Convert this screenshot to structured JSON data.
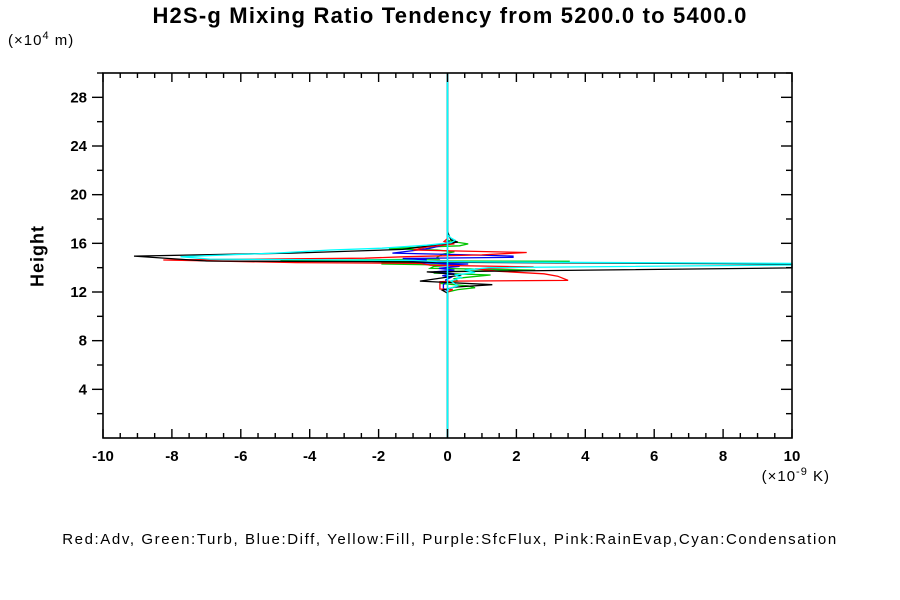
{
  "title": "H2S-g Mixing Ratio Tendency from 5200.0 to 5400.0",
  "legend_text": "Red:Adv, Green:Turb, Blue:Diff, Yellow:Fill, Purple:SfcFlux, Pink:RainEvap,Cyan:Condensation",
  "colors": {
    "background": "#ffffff",
    "frame": "#000000",
    "zero_line": "#00ffff",
    "red": "#ff0000",
    "green": "#00c400",
    "blue": "#0000ee",
    "yellow": "#ffff00",
    "purple": "#a020f0",
    "pink": "#ff69b4",
    "cyan": "#00ffff",
    "black": "#000000"
  },
  "chart_data": {
    "type": "line",
    "title": "H2S-g Mixing Ratio Tendency from 5200.0 to 5400.0",
    "orientation": "profile (x = tendency value, y = height)",
    "grid": false,
    "x_axis": {
      "range": [
        -10,
        10
      ],
      "major_tick_step": 2,
      "minor_tick_step": 0.5,
      "tick_labels": [
        "-10",
        "-8",
        "-6",
        "-4",
        "-2",
        "0",
        "2",
        "4",
        "6",
        "8",
        "10"
      ],
      "unit": {
        "prefix": "(×10",
        "exponent": "-9",
        "suffix": " K)"
      }
    },
    "y_axis": {
      "range": [
        0,
        30
      ],
      "major_tick_step": 4,
      "minor_tick_step": 2,
      "tick_labels": [
        "4",
        "8",
        "12",
        "16",
        "20",
        "24",
        "28"
      ],
      "label": "Height",
      "unit": {
        "prefix": "(×10",
        "exponent": "4",
        "suffix": " m)"
      }
    },
    "zero_line": {
      "x": 0,
      "color_key": "zero_line"
    },
    "point_format": "[height(x10^4 m), value(x10^-9 K)]",
    "series": [
      {
        "name": "Fill",
        "color_key": "yellow",
        "points": [
          [
            30,
            0
          ],
          [
            0,
            0
          ]
        ]
      },
      {
        "name": "SfcFlux",
        "color_key": "purple",
        "points": [
          [
            30,
            0
          ],
          [
            0,
            0
          ]
        ]
      },
      {
        "name": "RainEvap",
        "color_key": "pink",
        "points": [
          [
            30,
            0
          ],
          [
            0,
            0
          ]
        ]
      },
      {
        "name": "Turb",
        "color_key": "green",
        "points": [
          [
            30,
            0
          ],
          [
            16.25,
            0
          ],
          [
            16.1,
            0.25
          ],
          [
            15.95,
            0.6
          ],
          [
            15.8,
            0.35
          ],
          [
            15.65,
            -1.1
          ],
          [
            15.55,
            -1.7
          ],
          [
            15.45,
            -0.3
          ],
          [
            15.3,
            0.2
          ],
          [
            15.1,
            -0.15
          ],
          [
            14.85,
            -0.3
          ],
          [
            14.7,
            -0.25
          ],
          [
            14.58,
            -4.85
          ],
          [
            14.52,
            3.55
          ],
          [
            14.42,
            -1.9
          ],
          [
            14.3,
            -1.9
          ],
          [
            14.2,
            0.3
          ],
          [
            14.1,
            -0.4
          ],
          [
            13.95,
            -0.5
          ],
          [
            13.8,
            2.55
          ],
          [
            13.7,
            0.2
          ],
          [
            13.55,
            -0.4
          ],
          [
            13.4,
            1.25
          ],
          [
            13.25,
            0.7
          ],
          [
            13.1,
            0.2
          ],
          [
            12.9,
            0.3
          ],
          [
            12.7,
            -0.2
          ],
          [
            12.5,
            0.6
          ],
          [
            12.35,
            0.8
          ],
          [
            12.2,
            0.3
          ],
          [
            12.0,
            0
          ],
          [
            0,
            0
          ]
        ]
      },
      {
        "name": "Diff",
        "color_key": "blue",
        "points": [
          [
            30,
            0
          ],
          [
            16.2,
            0
          ],
          [
            16.0,
            0.1
          ],
          [
            15.8,
            -0.2
          ],
          [
            15.6,
            -0.5
          ],
          [
            15.4,
            -1.0
          ],
          [
            15.2,
            -1.6
          ],
          [
            15.05,
            0.7
          ],
          [
            14.95,
            1.9
          ],
          [
            14.85,
            1.9
          ],
          [
            14.75,
            -1.3
          ],
          [
            14.65,
            -0.6
          ],
          [
            14.55,
            -1.1
          ],
          [
            14.48,
            0.5
          ],
          [
            14.4,
            -0.9
          ],
          [
            14.3,
            0.6
          ],
          [
            14.2,
            -0.3
          ],
          [
            14.1,
            0.35
          ],
          [
            13.95,
            -0.25
          ],
          [
            13.8,
            0.2
          ],
          [
            13.65,
            -0.4
          ],
          [
            13.5,
            0.2
          ],
          [
            13.35,
            -0.15
          ],
          [
            13.2,
            0.1
          ],
          [
            13.0,
            -0.05
          ],
          [
            12.8,
            -0.05
          ],
          [
            12.6,
            -0.12
          ],
          [
            12.3,
            -0.12
          ],
          [
            12.1,
            0
          ],
          [
            0,
            0
          ]
        ]
      },
      {
        "name": "Adv",
        "color_key": "red",
        "points": [
          [
            30,
            0
          ],
          [
            16.4,
            0
          ],
          [
            16.15,
            -0.1
          ],
          [
            15.95,
            0.2
          ],
          [
            15.7,
            -0.6
          ],
          [
            15.45,
            -1.0
          ],
          [
            15.25,
            2.3
          ],
          [
            15.05,
            1.0
          ],
          [
            14.9,
            -1.2
          ],
          [
            14.78,
            -2.4
          ],
          [
            14.63,
            -8.25
          ],
          [
            14.42,
            -4.4
          ],
          [
            14.35,
            -0.8
          ],
          [
            14.2,
            -0.5
          ],
          [
            14.06,
            2.5
          ],
          [
            13.9,
            0.8
          ],
          [
            13.7,
            1.5
          ],
          [
            13.5,
            2.8
          ],
          [
            13.3,
            3.2
          ],
          [
            12.95,
            3.5
          ],
          [
            12.9,
            0.15
          ],
          [
            12.85,
            -0.22
          ],
          [
            12.25,
            -0.22
          ],
          [
            12.2,
            0.15
          ],
          [
            12.0,
            0
          ],
          [
            0,
            0
          ]
        ]
      },
      {
        "name": "black",
        "color_key": "black",
        "points": [
          [
            30,
            0
          ],
          [
            17.0,
            0
          ],
          [
            16.6,
            0.05
          ],
          [
            16.3,
            0.1
          ],
          [
            16.1,
            0.3
          ],
          [
            15.9,
            -0.3
          ],
          [
            15.5,
            -1.3
          ],
          [
            15.2,
            -4.5
          ],
          [
            14.95,
            -9.1
          ],
          [
            14.55,
            -7.0
          ],
          [
            14.5,
            -2.2
          ],
          [
            14.45,
            -0.4
          ],
          [
            14.3,
            10
          ],
          [
            13.98,
            10
          ],
          [
            13.65,
            -0.6
          ],
          [
            13.4,
            0.4
          ],
          [
            13.1,
            -0.3
          ],
          [
            12.9,
            -0.8
          ],
          [
            12.6,
            1.3
          ],
          [
            12.4,
            0.2
          ],
          [
            12.15,
            -0.15
          ],
          [
            11.9,
            0
          ],
          [
            0,
            0
          ]
        ]
      },
      {
        "name": "Condensation",
        "color_key": "cyan",
        "points": [
          [
            30,
            0
          ],
          [
            16.7,
            0
          ],
          [
            16.45,
            0.1
          ],
          [
            16.25,
            0.22
          ],
          [
            16.05,
            0.1
          ],
          [
            15.85,
            -0.6
          ],
          [
            15.6,
            -1.9
          ],
          [
            15.45,
            -3.4
          ],
          [
            15.2,
            -5.0
          ],
          [
            14.9,
            -7.75
          ],
          [
            14.7,
            -6.9
          ],
          [
            14.6,
            -1.0
          ],
          [
            14.5,
            -0.3
          ],
          [
            14.45,
            2.4
          ],
          [
            14.35,
            10
          ],
          [
            14.22,
            10
          ],
          [
            14.0,
            1.2
          ],
          [
            13.8,
            0.5
          ],
          [
            13.6,
            0.8
          ],
          [
            13.4,
            0.2
          ],
          [
            13.2,
            0.4
          ],
          [
            12.9,
            0.1
          ],
          [
            12.5,
            0.3
          ],
          [
            12.3,
            0.05
          ],
          [
            12.1,
            0
          ],
          [
            0,
            0
          ]
        ]
      }
    ]
  }
}
